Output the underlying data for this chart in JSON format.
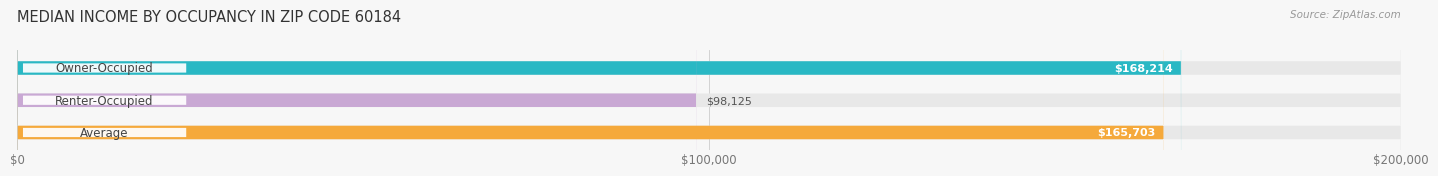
{
  "title": "MEDIAN INCOME BY OCCUPANCY IN ZIP CODE 60184",
  "source": "Source: ZipAtlas.com",
  "categories": [
    "Owner-Occupied",
    "Renter-Occupied",
    "Average"
  ],
  "values": [
    168214,
    98125,
    165703
  ],
  "bar_colors": [
    "#29b8c4",
    "#c9a8d4",
    "#f5a93b"
  ],
  "bar_bg_color": "#e8e8e8",
  "value_labels": [
    "$168,214",
    "$98,125",
    "$165,703"
  ],
  "x_ticks": [
    0,
    100000,
    200000
  ],
  "x_tick_labels": [
    "$0",
    "$100,000",
    "$200,000"
  ],
  "x_max": 200000,
  "background_color": "#f7f7f7",
  "title_fontsize": 10.5,
  "label_fontsize": 8.5,
  "value_fontsize": 8,
  "source_fontsize": 7.5
}
